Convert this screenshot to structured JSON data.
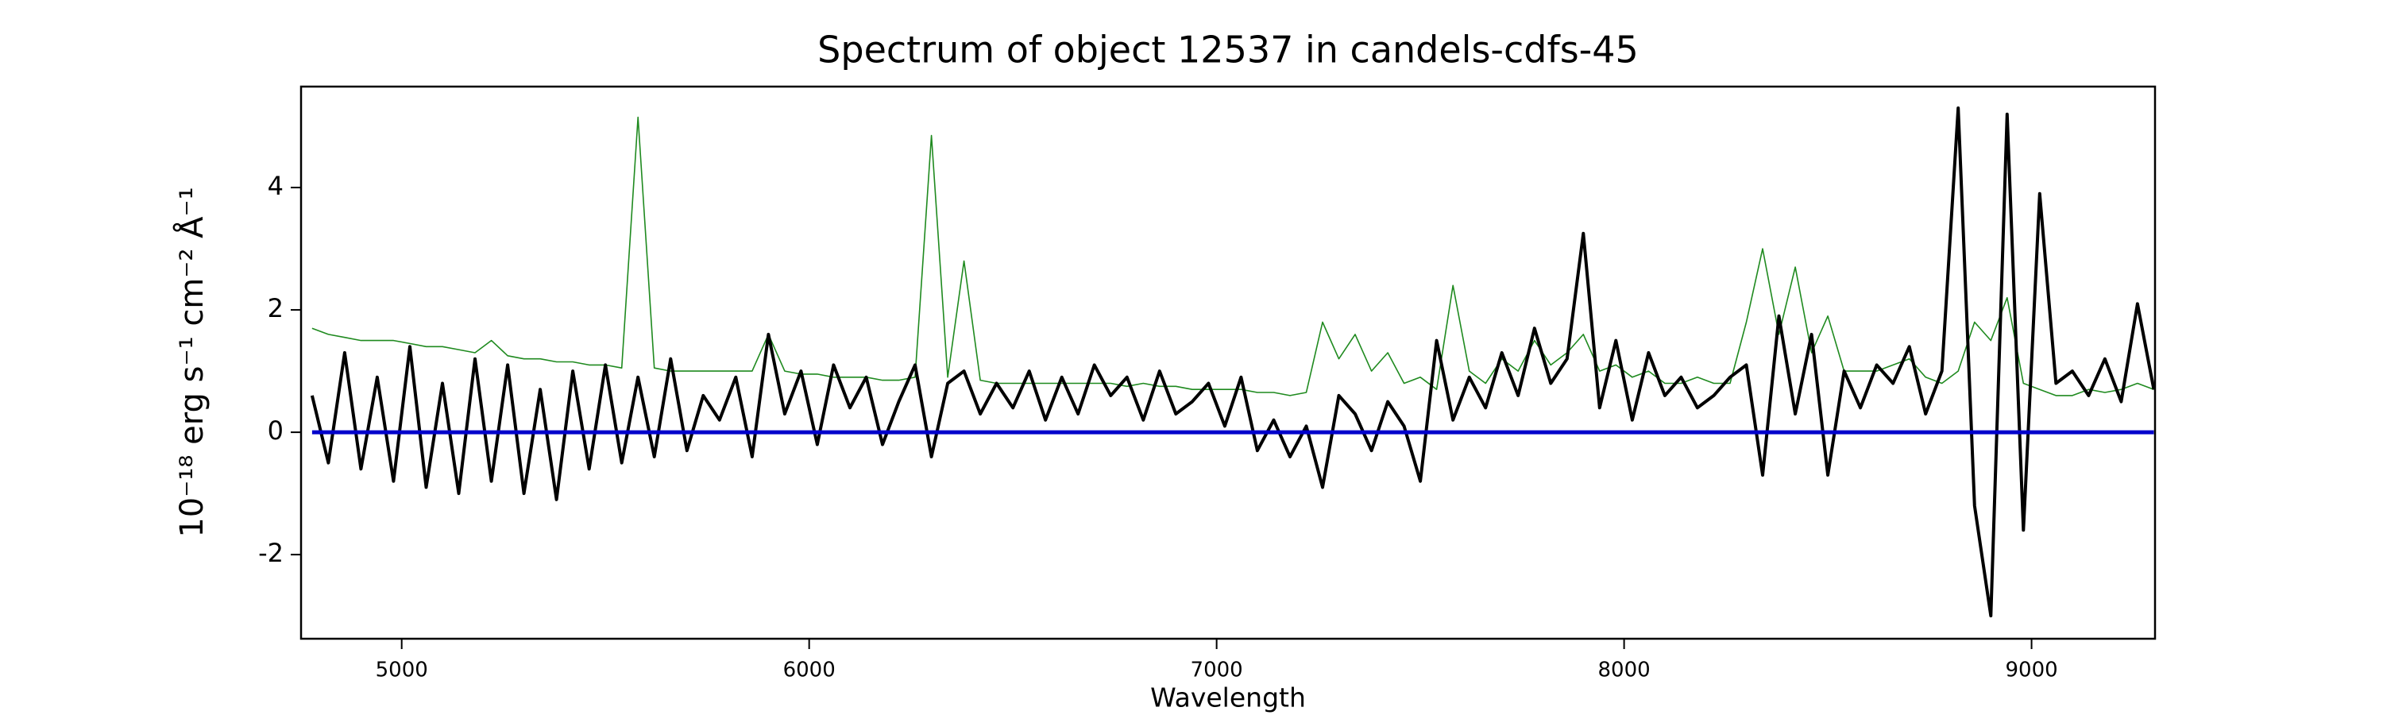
{
  "chart_data": {
    "type": "line",
    "title": "Spectrum of object 12537 in candels-cdfs-45",
    "x_label": "Wavelength",
    "y_label": "10⁻¹⁸ erg s⁻¹ cm⁻² Å⁻¹",
    "x": [
      4780,
      4820,
      4860,
      4900,
      4940,
      4980,
      5020,
      5060,
      5100,
      5140,
      5180,
      5220,
      5260,
      5300,
      5340,
      5380,
      5420,
      5460,
      5500,
      5540,
      5580,
      5620,
      5660,
      5700,
      5740,
      5780,
      5820,
      5860,
      5900,
      5940,
      5980,
      6020,
      6060,
      6100,
      6140,
      6180,
      6220,
      6260,
      6300,
      6340,
      6380,
      6420,
      6460,
      6500,
      6540,
      6580,
      6620,
      6660,
      6700,
      6740,
      6780,
      6820,
      6860,
      6900,
      6940,
      6980,
      7020,
      7060,
      7100,
      7140,
      7180,
      7220,
      7260,
      7300,
      7340,
      7380,
      7420,
      7460,
      7500,
      7540,
      7580,
      7620,
      7660,
      7700,
      7740,
      7780,
      7820,
      7860,
      7900,
      7940,
      7980,
      8020,
      8060,
      8100,
      8140,
      8180,
      8220,
      8260,
      8300,
      8340,
      8380,
      8420,
      8460,
      8500,
      8540,
      8580,
      8620,
      8660,
      8700,
      8740,
      8780,
      8820,
      8860,
      8900,
      8940,
      8980,
      9020,
      9060,
      9100,
      9140,
      9180,
      9220,
      9260,
      9300
    ],
    "series": [
      {
        "color": "#1f8a1f",
        "width": 1.6,
        "values": [
          1.7,
          1.6,
          1.55,
          1.5,
          1.5,
          1.5,
          1.45,
          1.4,
          1.4,
          1.35,
          1.3,
          1.5,
          1.25,
          1.2,
          1.2,
          1.15,
          1.15,
          1.1,
          1.1,
          1.05,
          5.15,
          1.05,
          1.0,
          1.0,
          1.0,
          1.0,
          1.0,
          1.0,
          1.6,
          1.0,
          0.95,
          0.95,
          0.9,
          0.9,
          0.9,
          0.85,
          0.85,
          0.9,
          4.85,
          0.9,
          2.8,
          0.85,
          0.8,
          0.8,
          0.8,
          0.8,
          0.8,
          0.8,
          0.8,
          0.8,
          0.75,
          0.8,
          0.75,
          0.75,
          0.7,
          0.7,
          0.7,
          0.7,
          0.65,
          0.65,
          0.6,
          0.65,
          1.8,
          1.2,
          1.6,
          1.0,
          1.3,
          0.8,
          0.9,
          0.7,
          2.4,
          1.0,
          0.8,
          1.2,
          1.0,
          1.5,
          1.1,
          1.3,
          1.6,
          1.0,
          1.1,
          0.9,
          1.0,
          0.8,
          0.8,
          0.9,
          0.8,
          0.8,
          1.8,
          3.0,
          1.6,
          2.7,
          1.3,
          1.9,
          1.0,
          1.0,
          1.0,
          1.1,
          1.2,
          0.9,
          0.8,
          1.0,
          1.8,
          1.5,
          2.2,
          0.8,
          0.7,
          0.6,
          0.6,
          0.7,
          0.65,
          0.7,
          0.8,
          0.7
        ]
      },
      {
        "color": "#000000",
        "width": 4,
        "values": [
          0.6,
          -0.5,
          1.3,
          -0.6,
          0.9,
          -0.8,
          1.4,
          -0.9,
          0.8,
          -1.0,
          1.2,
          -0.8,
          1.1,
          -1.0,
          0.7,
          -1.1,
          1.0,
          -0.6,
          1.1,
          -0.5,
          0.9,
          -0.4,
          1.2,
          -0.3,
          0.6,
          0.2,
          0.9,
          -0.4,
          1.6,
          0.3,
          1.0,
          -0.2,
          1.1,
          0.4,
          0.9,
          -0.2,
          0.5,
          1.1,
          -0.4,
          0.8,
          1.0,
          0.3,
          0.8,
          0.4,
          1.0,
          0.2,
          0.9,
          0.3,
          1.1,
          0.6,
          0.9,
          0.2,
          1.0,
          0.3,
          0.5,
          0.8,
          0.1,
          0.9,
          -0.3,
          0.2,
          -0.4,
          0.1,
          -0.9,
          0.6,
          0.3,
          -0.3,
          0.5,
          0.1,
          -0.8,
          1.5,
          0.2,
          0.9,
          0.4,
          1.3,
          0.6,
          1.7,
          0.8,
          1.2,
          3.25,
          0.4,
          1.5,
          0.2,
          1.3,
          0.6,
          0.9,
          0.4,
          0.6,
          0.9,
          1.1,
          -0.7,
          1.9,
          0.3,
          1.6,
          -0.7,
          1.0,
          0.4,
          1.1,
          0.8,
          1.4,
          0.3,
          1.0,
          5.3,
          -1.2,
          -3.0,
          5.2,
          -1.6,
          3.9,
          0.8,
          1.0,
          0.6,
          1.2,
          0.5,
          2.1,
          0.7
        ]
      },
      {
        "color": "#0000cc",
        "width": 5,
        "values": [
          0,
          0,
          0,
          0,
          0,
          0,
          0,
          0,
          0,
          0,
          0,
          0,
          0,
          0,
          0,
          0,
          0,
          0,
          0,
          0,
          0,
          0,
          0,
          0,
          0,
          0,
          0,
          0,
          0,
          0,
          0,
          0,
          0,
          0,
          0,
          0,
          0,
          0,
          0,
          0,
          0,
          0,
          0,
          0,
          0,
          0,
          0,
          0,
          0,
          0,
          0,
          0,
          0,
          0,
          0,
          0,
          0,
          0,
          0,
          0,
          0,
          0,
          0,
          0,
          0,
          0,
          0,
          0,
          0,
          0,
          0,
          0,
          0,
          0,
          0,
          0,
          0,
          0,
          0,
          0,
          0,
          0,
          0,
          0,
          0,
          0,
          0,
          0,
          0,
          0,
          0,
          0,
          0,
          0,
          0,
          0,
          0,
          0,
          0,
          0,
          0,
          0,
          0,
          0,
          0,
          0,
          0,
          0,
          0,
          0,
          0,
          0,
          0,
          0
        ]
      }
    ],
    "xlim": [
      4753,
      9303
    ],
    "xticks": [
      5000,
      6000,
      7000,
      8000,
      9000
    ],
    "ylim": [
      -3.375,
      5.65
    ],
    "yticks": [
      -2,
      0,
      2,
      4
    ],
    "grid": false
  }
}
